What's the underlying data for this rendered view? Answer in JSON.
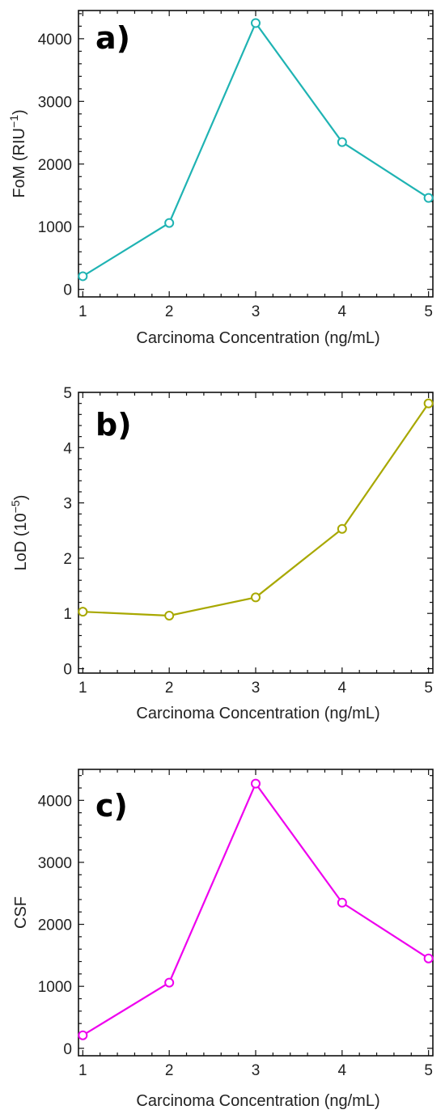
{
  "chart_data": [
    {
      "type": "line",
      "panel_label": "a)",
      "xlabel": "Carcinoma Concentration (ng/mL)",
      "ylabel": "FoM (RIU",
      "ylabel_sup": "−1",
      "ylabel_close": ")",
      "x": [
        1,
        2,
        3,
        4,
        5
      ],
      "series": [
        {
          "values": [
            210,
            1060,
            4250,
            2350,
            1460
          ],
          "color": "#1fb3b3"
        }
      ],
      "xlim": [
        0.95,
        5.05
      ],
      "ylim": [
        -120,
        4450
      ],
      "xticks": [
        "1",
        "2",
        "3",
        "4",
        "5"
      ],
      "yticks": [
        "0",
        "1000",
        "2000",
        "3000",
        "4000"
      ],
      "ytick_values": [
        0,
        1000,
        2000,
        3000,
        4000
      ],
      "grid": false
    },
    {
      "type": "line",
      "panel_label": "b)",
      "xlabel": "Carcinoma Concentration (ng/mL)",
      "ylabel": "LoD (10",
      "ylabel_sup": "−5",
      "ylabel_close": ")",
      "x": [
        1,
        2,
        3,
        4,
        5
      ],
      "series": [
        {
          "values": [
            1.03,
            0.96,
            1.29,
            2.53,
            4.8
          ],
          "color": "#a8a800"
        }
      ],
      "xlim": [
        0.95,
        5.05
      ],
      "ylim": [
        -0.08,
        5.0
      ],
      "xticks": [
        "1",
        "2",
        "3",
        "4",
        "5"
      ],
      "yticks": [
        "0",
        "1",
        "2",
        "3",
        "4",
        "5"
      ],
      "ytick_values": [
        0,
        1,
        2,
        3,
        4,
        5
      ],
      "grid": false
    },
    {
      "type": "line",
      "panel_label": "c)",
      "xlabel": "Carcinoma Concentration (ng/mL)",
      "ylabel": "CSF",
      "ylabel_sup": "",
      "ylabel_close": "",
      "x": [
        1,
        2,
        3,
        4,
        5
      ],
      "series": [
        {
          "values": [
            210,
            1060,
            4270,
            2350,
            1450
          ],
          "color": "#ee00ee"
        }
      ],
      "xlim": [
        0.95,
        5.05
      ],
      "ylim": [
        -120,
        4500
      ],
      "xticks": [
        "1",
        "2",
        "3",
        "4",
        "5"
      ],
      "yticks": [
        "0",
        "1000",
        "2000",
        "3000",
        "4000"
      ],
      "ytick_values": [
        0,
        1000,
        2000,
        3000,
        4000
      ],
      "grid": false
    }
  ]
}
